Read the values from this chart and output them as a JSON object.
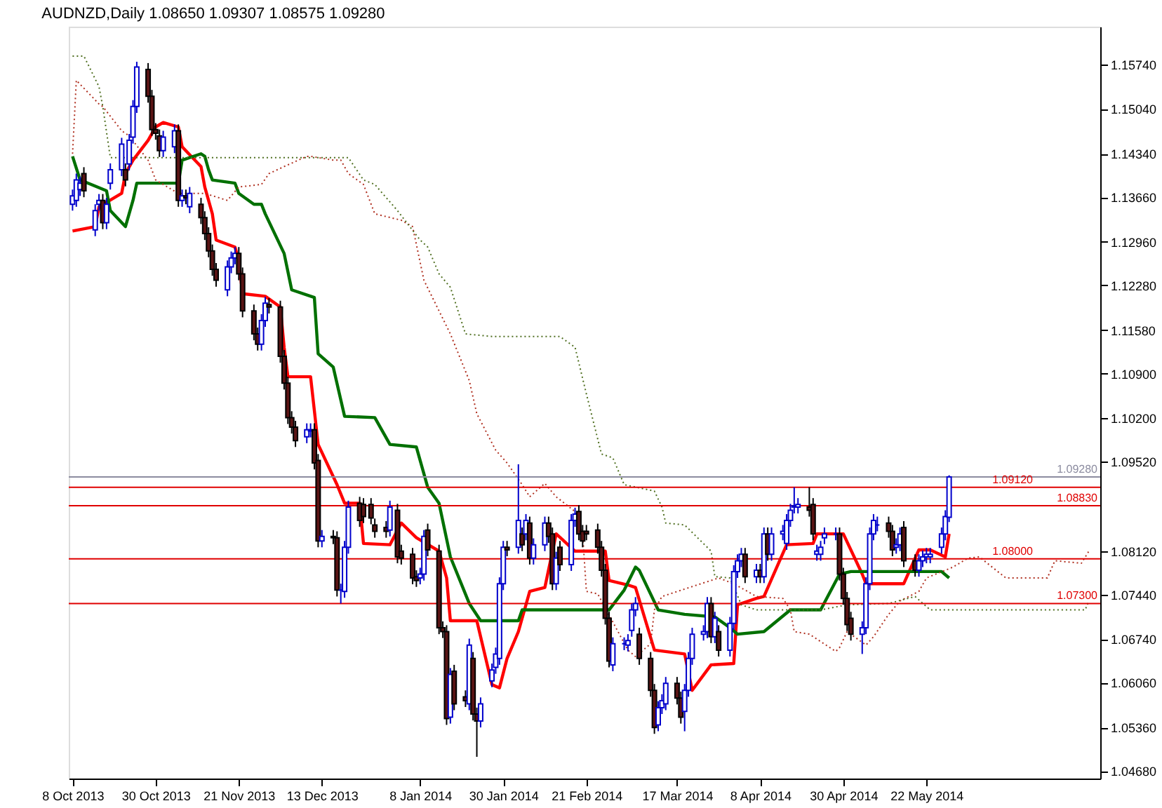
{
  "chart_data": {
    "type": "candlestick",
    "title": "AUDNZD,Daily  1.08650 1.09307 1.08575 1.09280",
    "x": [
      "2013-10-08",
      "2013-10-09",
      "2013-10-10",
      "2013-10-11",
      "2013-10-14",
      "2013-10-15",
      "2013-10-16",
      "2013-10-17",
      "2013-10-18",
      "2013-10-21",
      "2013-10-22",
      "2013-10-23",
      "2013-10-24",
      "2013-10-25",
      "2013-10-28",
      "2013-10-29",
      "2013-10-30",
      "2013-10-31",
      "2013-11-01",
      "2013-11-04",
      "2013-11-05",
      "2013-11-06",
      "2013-11-07",
      "2013-11-08",
      "2013-11-11",
      "2013-11-12",
      "2013-11-13",
      "2013-11-14",
      "2013-11-15",
      "2013-11-18",
      "2013-11-19",
      "2013-11-20",
      "2013-11-21",
      "2013-11-22",
      "2013-11-25",
      "2013-11-26",
      "2013-11-27",
      "2013-11-28",
      "2013-11-29",
      "2013-12-02",
      "2013-12-03",
      "2013-12-04",
      "2013-12-05",
      "2013-12-06",
      "2013-12-09",
      "2013-12-10",
      "2013-12-11",
      "2013-12-12",
      "2013-12-13",
      "2013-12-16",
      "2013-12-17",
      "2013-12-18",
      "2013-12-19",
      "2013-12-20",
      "2013-12-23",
      "2013-12-24",
      "2013-12-26",
      "2013-12-27",
      "2013-12-30",
      "2013-12-31",
      "2014-01-02",
      "2014-01-03",
      "2014-01-06",
      "2014-01-07",
      "2014-01-08",
      "2014-01-09",
      "2014-01-10",
      "2014-01-13",
      "2014-01-14",
      "2014-01-15",
      "2014-01-16",
      "2014-01-17",
      "2014-01-20",
      "2014-01-21",
      "2014-01-22",
      "2014-01-23",
      "2014-01-24",
      "2014-01-27",
      "2014-01-28",
      "2014-01-29",
      "2014-01-30",
      "2014-01-31",
      "2014-02-03",
      "2014-02-04",
      "2014-02-05",
      "2014-02-06",
      "2014-02-07",
      "2014-02-10",
      "2014-02-11",
      "2014-02-12",
      "2014-02-13",
      "2014-02-14",
      "2014-02-17",
      "2014-02-18",
      "2014-02-19",
      "2014-02-20",
      "2014-02-21",
      "2014-02-24",
      "2014-02-25",
      "2014-02-26",
      "2014-02-27",
      "2014-02-28",
      "2014-03-03",
      "2014-03-04",
      "2014-03-05",
      "2014-03-06",
      "2014-03-07",
      "2014-03-10",
      "2014-03-11",
      "2014-03-12",
      "2014-03-13",
      "2014-03-14",
      "2014-03-17",
      "2014-03-18",
      "2014-03-19",
      "2014-03-20",
      "2014-03-21",
      "2014-03-24",
      "2014-03-25",
      "2014-03-26",
      "2014-03-27",
      "2014-03-28",
      "2014-03-31",
      "2014-04-01",
      "2014-04-02",
      "2014-04-03",
      "2014-04-04",
      "2014-04-07",
      "2014-04-08",
      "2014-04-09",
      "2014-04-10",
      "2014-04-11",
      "2014-04-14",
      "2014-04-15",
      "2014-04-16",
      "2014-04-17",
      "2014-04-18",
      "2014-04-21",
      "2014-04-22",
      "2014-04-23",
      "2014-04-24",
      "2014-04-25",
      "2014-04-28",
      "2014-04-29",
      "2014-04-30",
      "2014-05-01",
      "2014-05-02",
      "2014-05-05",
      "2014-05-06",
      "2014-05-07",
      "2014-05-08",
      "2014-05-09",
      "2014-05-12",
      "2014-05-13",
      "2014-05-14",
      "2014-05-15",
      "2014-05-16",
      "2014-05-19",
      "2014-05-20",
      "2014-05-21",
      "2014-05-22",
      "2014-05-23",
      "2014-05-26",
      "2014-05-27",
      "2014-05-28"
    ],
    "ohlc": [
      [
        1.1355,
        1.1378,
        1.1345,
        1.1368
      ],
      [
        1.1361,
        1.1403,
        1.1351,
        1.1393
      ],
      [
        1.1378,
        1.1398,
        1.1368,
        1.1388
      ],
      [
        1.1403,
        1.1413,
        1.1366,
        1.1376
      ],
      [
        1.1315,
        1.1355,
        1.1305,
        1.1345
      ],
      [
        1.1355,
        1.1371,
        1.1345,
        1.1361
      ],
      [
        1.1361,
        1.1371,
        1.1316,
        1.1326
      ],
      [
        1.1326,
        1.1365,
        1.1316,
        1.1355
      ],
      [
        1.1388,
        1.1419,
        1.1378,
        1.1409
      ],
      [
        1.1409,
        1.1459,
        1.1399,
        1.1449
      ],
      [
        1.1409,
        1.1419,
        1.1383,
        1.1393
      ],
      [
        1.1418,
        1.1465,
        1.1408,
        1.1455
      ],
      [
        1.146,
        1.1518,
        1.145,
        1.1508
      ],
      [
        1.1508,
        1.1578,
        1.1498,
        1.157
      ],
      [
        1.1566,
        1.1576,
        1.1514,
        1.1524
      ],
      [
        1.1524,
        1.1534,
        1.1462,
        1.1472
      ],
      [
        1.1472,
        1.1482,
        1.1456,
        1.1466
      ],
      [
        1.1462,
        1.1472,
        1.1429,
        1.1439
      ],
      [
        1.1439,
        1.147,
        1.1429,
        1.146
      ],
      [
        1.1445,
        1.148,
        1.1435,
        1.147
      ],
      [
        1.147,
        1.148,
        1.1351,
        1.1361
      ],
      [
        1.1361,
        1.1378,
        1.1351,
        1.1368
      ],
      [
        1.1368,
        1.1378,
        1.1355,
        1.1365
      ],
      [
        1.1351,
        1.1382,
        1.1341,
        1.1372
      ],
      [
        1.1355,
        1.1365,
        1.1324,
        1.1334
      ],
      [
        1.1334,
        1.1344,
        1.1299,
        1.1309
      ],
      [
        1.1309,
        1.1319,
        1.1272,
        1.1282
      ],
      [
        1.1282,
        1.1292,
        1.1243,
        1.1253
      ],
      [
        1.1253,
        1.1263,
        1.1226,
        1.1236
      ],
      [
        1.1221,
        1.1267,
        1.1211,
        1.1257
      ],
      [
        1.1257,
        1.1281,
        1.1247,
        1.1271
      ],
      [
        1.1271,
        1.1288,
        1.1261,
        1.1278
      ],
      [
        1.1278,
        1.1288,
        1.1236,
        1.1246
      ],
      [
        1.1246,
        1.1256,
        1.1178,
        1.1188
      ],
      [
        1.1188,
        1.1198,
        1.1142,
        1.1152
      ],
      [
        1.1152,
        1.1162,
        1.1126,
        1.1136
      ],
      [
        1.1136,
        1.1183,
        1.1126,
        1.1173
      ],
      [
        1.1173,
        1.121,
        1.1163,
        1.12
      ],
      [
        1.1198,
        1.1208,
        1.1184,
        1.1194
      ],
      [
        1.1194,
        1.1204,
        1.1107,
        1.1117
      ],
      [
        1.1117,
        1.1127,
        1.1065,
        1.1075
      ],
      [
        1.1075,
        1.1085,
        1.1011,
        1.1021
      ],
      [
        1.1021,
        1.1031,
        1.0996,
        1.1006
      ],
      [
        1.1006,
        1.1016,
        1.0975,
        1.0985
      ],
      [
        1.0991,
        1.1012,
        1.0981,
        1.1002
      ],
      [
        1.1,
        1.1012,
        1.099,
        1.1002
      ],
      [
        1.1002,
        1.1012,
        1.094,
        1.095
      ],
      [
        1.0954,
        1.0964,
        1.0818,
        1.0828
      ],
      [
        1.0828,
        1.0845,
        1.0818,
        1.0835
      ],
      [
        1.0835,
        1.0845,
        1.0823,
        1.0833
      ],
      [
        1.0833,
        1.0843,
        1.0741,
        1.0751
      ],
      [
        1.0751,
        1.0761,
        1.073,
        1.0751
      ],
      [
        1.0749,
        1.0828,
        1.0739,
        1.0818
      ],
      [
        1.0818,
        1.0891,
        1.0808,
        1.0881
      ],
      [
        1.0887,
        1.0897,
        1.085,
        1.086
      ],
      [
        1.0885,
        1.0895,
        1.0856,
        1.0866
      ],
      [
        1.0885,
        1.0895,
        1.0854,
        1.0864
      ],
      [
        1.0853,
        1.0863,
        1.0833,
        1.0843
      ],
      [
        1.0849,
        1.0859,
        1.0833,
        1.0843
      ],
      [
        1.0845,
        1.0891,
        1.0835,
        1.0881
      ],
      [
        1.0876,
        1.0886,
        1.0793,
        1.0803
      ],
      [
        1.0812,
        1.0822,
        1.0791,
        1.0801
      ],
      [
        1.0807,
        1.0817,
        1.076,
        1.077
      ],
      [
        1.0772,
        1.0782,
        1.0756,
        1.0766
      ],
      [
        1.077,
        1.0786,
        1.076,
        1.0776
      ],
      [
        1.0776,
        1.0845,
        1.0766,
        1.0835
      ],
      [
        1.0845,
        1.0855,
        1.0804,
        1.0814
      ],
      [
        1.0812,
        1.0822,
        1.0682,
        1.0692
      ],
      [
        1.0692,
        1.0702,
        1.0676,
        1.0686
      ],
      [
        1.0686,
        1.0696,
        1.054,
        1.055
      ],
      [
        1.0552,
        1.0629,
        1.0542,
        1.0619
      ],
      [
        1.0624,
        1.0634,
        1.0563,
        1.0573
      ],
      [
        1.0584,
        1.0594,
        1.0568,
        1.0578
      ],
      [
        1.0573,
        1.0675,
        1.0563,
        1.0665
      ],
      [
        1.0644,
        1.0654,
        1.0547,
        1.0557
      ],
      [
        1.0557,
        1.0567,
        1.049,
        1.0546
      ],
      [
        1.0546,
        1.0583,
        1.0536,
        1.0573
      ],
      [
        1.0609,
        1.0636,
        1.0599,
        1.0626
      ],
      [
        1.063,
        1.0661,
        1.062,
        1.0651
      ],
      [
        1.0644,
        1.0771,
        1.0634,
        1.0761
      ],
      [
        1.0761,
        1.0828,
        1.0751,
        1.0818
      ],
      [
        1.0818,
        1.0828,
        1.0804,
        1.0814
      ],
      [
        1.0818,
        1.0948,
        1.0808,
        1.086
      ],
      [
        1.0839,
        1.0849,
        1.0812,
        1.0822
      ],
      [
        1.0839,
        1.087,
        1.0829,
        1.086
      ],
      [
        1.0856,
        1.0866,
        1.0791,
        1.0801
      ],
      [
        1.0801,
        1.0832,
        1.0791,
        1.0822
      ],
      [
        1.0822,
        1.0866,
        1.0812,
        1.0856
      ],
      [
        1.0856,
        1.0866,
        1.0825,
        1.0835
      ],
      [
        1.0839,
        1.0849,
        1.0751,
        1.0761
      ],
      [
        1.0761,
        1.0811,
        1.0751,
        1.0801
      ],
      [
        1.0818,
        1.0828,
        1.0781,
        1.0791
      ],
      [
        1.0791,
        1.087,
        1.0781,
        1.086
      ],
      [
        1.086,
        1.088,
        1.085,
        1.087
      ],
      [
        1.0874,
        1.0884,
        1.0829,
        1.0839
      ],
      [
        1.0843,
        1.0853,
        1.0818,
        1.0828
      ],
      [
        1.0843,
        1.0853,
        1.0829,
        1.0839
      ],
      [
        1.0845,
        1.0855,
        1.0808,
        1.0818
      ],
      [
        1.0818,
        1.0828,
        1.0772,
        1.0782
      ],
      [
        1.0782,
        1.0792,
        1.0697,
        1.0707
      ],
      [
        1.0707,
        1.0717,
        1.063,
        1.064
      ],
      [
        1.0634,
        1.0677,
        1.0624,
        1.0667
      ],
      [
        1.0667,
        1.0677,
        1.0657,
        1.0667
      ],
      [
        1.0665,
        1.0682,
        1.0655,
        1.0672
      ],
      [
        1.0688,
        1.073,
        1.0678,
        1.072
      ],
      [
        1.072,
        1.074,
        1.071,
        1.073
      ],
      [
        1.0682,
        1.0692,
        1.0634,
        1.0644
      ],
      [
        1.0644,
        1.0654,
        1.0584,
        1.0594
      ],
      [
        1.0594,
        1.0604,
        1.0526,
        1.0536
      ],
      [
        1.054,
        1.0577,
        1.053,
        1.0567
      ],
      [
        1.0567,
        1.0588,
        1.0557,
        1.0578
      ],
      [
        1.0573,
        1.0615,
        1.0563,
        1.0605
      ],
      [
        1.0605,
        1.0615,
        1.0572,
        1.0582
      ],
      [
        1.0582,
        1.0592,
        1.0542,
        1.0552
      ],
      [
        1.0561,
        1.0604,
        1.053,
        1.0594
      ],
      [
        1.0594,
        1.0654,
        1.0584,
        1.0644
      ],
      [
        1.0644,
        1.0692,
        1.0634,
        1.0682
      ],
      [
        1.0682,
        1.0696,
        1.0672,
        1.0686
      ],
      [
        1.0686,
        1.074,
        1.0676,
        1.073
      ],
      [
        1.073,
        1.074,
        1.0668,
        1.0678
      ],
      [
        1.0678,
        1.0717,
        1.0668,
        1.0707
      ],
      [
        1.0686,
        1.0696,
        1.0647,
        1.0657
      ],
      [
        1.0657,
        1.0709,
        1.0647,
        1.0699
      ],
      [
        1.0699,
        1.079,
        1.0689,
        1.078
      ],
      [
        1.078,
        1.0807,
        1.077,
        1.0797
      ],
      [
        1.0797,
        1.0817,
        1.0787,
        1.0807
      ],
      [
        1.0807,
        1.0817,
        1.0762,
        1.0772
      ],
      [
        1.0772,
        1.0792,
        1.0762,
        1.0782
      ],
      [
        1.0782,
        1.0792,
        1.0762,
        1.0772
      ],
      [
        1.0772,
        1.0849,
        1.0762,
        1.0839
      ],
      [
        1.0839,
        1.0849,
        1.0797,
        1.0807
      ],
      [
        1.0807,
        1.0849,
        1.0797,
        1.0839
      ],
      [
        1.0839,
        1.0853,
        1.0829,
        1.0843
      ],
      [
        1.0824,
        1.087,
        1.0814,
        1.086
      ],
      [
        1.086,
        1.0886,
        1.085,
        1.0876
      ],
      [
        1.0881,
        1.0912,
        1.0871,
        1.0883
      ],
      [
        1.0881,
        1.0895,
        1.0871,
        1.0885
      ],
      [
        1.0881,
        1.0912,
        1.0866,
        1.0876
      ],
      [
        1.0885,
        1.0895,
        1.0829,
        1.0839
      ],
      [
        1.0807,
        1.0822,
        1.0797,
        1.0812
      ],
      [
        1.0807,
        1.0828,
        1.0797,
        1.0818
      ],
      [
        1.0833,
        1.0849,
        1.0823,
        1.0839
      ],
      [
        1.0839,
        1.0849,
        1.0829,
        1.0839
      ],
      [
        1.0839,
        1.0849,
        1.0766,
        1.0776
      ],
      [
        1.0776,
        1.0786,
        1.0728,
        1.0738
      ],
      [
        1.0738,
        1.0748,
        1.0687,
        1.0697
      ],
      [
        1.0707,
        1.0717,
        1.0672,
        1.0682
      ],
      [
        1.0682,
        1.0702,
        1.0651,
        1.0692
      ],
      [
        1.0692,
        1.0771,
        1.0682,
        1.0761
      ],
      [
        1.0761,
        1.0849,
        1.0751,
        1.0839
      ],
      [
        1.0839,
        1.087,
        1.0829,
        1.086
      ],
      [
        1.0853,
        1.0866,
        1.0843,
        1.0853
      ],
      [
        1.0856,
        1.0866,
        1.0833,
        1.0843
      ],
      [
        1.0843,
        1.0853,
        1.0804,
        1.0814
      ],
      [
        1.0818,
        1.0832,
        1.0808,
        1.0822
      ],
      [
        1.0822,
        1.0849,
        1.0812,
        1.0839
      ],
      [
        1.0849,
        1.0859,
        1.0787,
        1.0797
      ],
      [
        1.0797,
        1.0807,
        1.0772,
        1.0782
      ],
      [
        1.0782,
        1.0807,
        1.0772,
        1.0797
      ],
      [
        1.0797,
        1.0813,
        1.0787,
        1.0803
      ],
      [
        1.0803,
        1.0817,
        1.0793,
        1.0807
      ],
      [
        1.0803,
        1.0817,
        1.0793,
        1.0807
      ],
      [
        1.0818,
        1.0849,
        1.0808,
        1.0839
      ],
      [
        1.0839,
        1.0876,
        1.0829,
        1.0866
      ],
      [
        1.0865,
        1.09307,
        1.08575,
        1.0928
      ]
    ],
    "series": [
      {
        "type": "line",
        "color": "#ff0000",
        "line_style": "solid",
        "x": [
          "2013-10-08",
          "2013-10-14",
          "2013-10-15",
          "2013-10-21",
          "2013-10-22",
          "2013-10-24",
          "2013-10-28",
          "2013-10-30",
          "2013-11-01",
          "2013-11-05",
          "2013-11-06",
          "2013-11-11",
          "2013-11-12",
          "2013-11-14",
          "2013-11-15",
          "2013-11-20",
          "2013-11-21",
          "2013-11-22",
          "2013-11-28",
          "2013-12-02",
          "2013-12-03",
          "2013-12-04",
          "2013-12-10",
          "2013-12-12",
          "2013-12-17",
          "2013-12-19",
          "2013-12-23",
          "2013-12-24",
          "2013-12-31",
          "2014-01-03",
          "2014-01-07",
          "2014-01-13",
          "2014-01-15",
          "2014-01-16",
          "2014-01-23",
          "2014-01-27",
          "2014-01-29",
          "2014-01-31",
          "2014-02-03",
          "2014-02-06",
          "2014-02-10",
          "2014-02-13",
          "2014-02-18",
          "2014-02-26",
          "2014-02-27",
          "2014-03-04",
          "2014-03-06",
          "2014-03-11",
          "2014-03-19",
          "2014-03-21",
          "2014-03-26",
          "2014-04-01",
          "2014-04-02",
          "2014-04-07",
          "2014-04-09",
          "2014-04-15",
          "2014-04-22",
          "2014-04-23",
          "2014-04-30",
          "2014-05-05",
          "2014-05-06",
          "2014-05-16",
          "2014-05-20",
          "2014-05-23",
          "2014-05-27",
          "2014-05-28"
        ],
        "values": [
          1.1313,
          1.132,
          1.1351,
          1.1372,
          1.1403,
          1.1424,
          1.1455,
          1.1476,
          1.1483,
          1.1476,
          1.1445,
          1.1414,
          1.1382,
          1.134,
          1.1299,
          1.1288,
          1.1267,
          1.1215,
          1.1211,
          1.1194,
          1.1131,
          1.1085,
          1.1085,
          1.0979,
          1.0916,
          1.0887,
          1.0887,
          1.0824,
          1.0822,
          1.0856,
          1.0833,
          1.0812,
          1.077,
          1.0703,
          1.0703,
          1.0603,
          1.0598,
          1.0644,
          1.0686,
          1.0749,
          1.0755,
          1.0839,
          1.0812,
          1.0812,
          1.0766,
          1.0759,
          1.0755,
          1.0657,
          1.0651,
          1.0594,
          1.0634,
          1.0636,
          1.0728,
          1.0738,
          1.0741,
          1.0822,
          1.0824,
          1.0839,
          1.0839,
          1.0776,
          1.0761,
          1.0761,
          1.0814,
          1.0814,
          1.0803,
          1.0839
        ]
      },
      {
        "type": "line",
        "color": "#007000",
        "line_style": "solid",
        "x": [
          "2013-10-08",
          "2013-10-10",
          "2013-10-17",
          "2013-10-18",
          "2013-10-22",
          "2013-10-24",
          "2013-10-25",
          "2013-11-05",
          "2013-11-06",
          "2013-11-11",
          "2013-11-12",
          "2013-11-13",
          "2013-11-14",
          "2013-11-20",
          "2013-11-21",
          "2013-11-25",
          "2013-11-27",
          "2013-11-28",
          "2013-12-03",
          "2013-12-05",
          "2013-12-11",
          "2013-12-12",
          "2013-12-16",
          "2013-12-19",
          "2013-12-27",
          "2013-12-31",
          "2014-01-07",
          "2014-01-10",
          "2014-01-13",
          "2014-01-16",
          "2014-01-21",
          "2014-01-24",
          "2014-02-03",
          "2014-02-04",
          "2014-02-27",
          "2014-03-03",
          "2014-03-06",
          "2014-03-07",
          "2014-03-12",
          "2014-03-19",
          "2014-03-27",
          "2014-03-31",
          "2014-04-02",
          "2014-04-09",
          "2014-04-16",
          "2014-04-24",
          "2014-04-29",
          "2014-05-02",
          "2014-05-26",
          "2014-05-28"
        ],
        "values": [
          1.143,
          1.1393,
          1.1376,
          1.1345,
          1.132,
          1.1361,
          1.1388,
          1.1388,
          1.1424,
          1.1434,
          1.143,
          1.1409,
          1.1393,
          1.1388,
          1.1372,
          1.1355,
          1.1355,
          1.134,
          1.1278,
          1.1221,
          1.1209,
          1.1121,
          1.11,
          1.1023,
          1.1021,
          1.0979,
          1.0975,
          1.0912,
          1.0887,
          1.0803,
          1.073,
          1.0703,
          1.0703,
          1.072,
          1.072,
          1.0751,
          1.0787,
          1.0782,
          1.072,
          1.0713,
          1.0709,
          1.0692,
          1.0682,
          1.0686,
          1.072,
          1.072,
          1.0776,
          1.078,
          1.078,
          1.077
        ]
      },
      {
        "type": "line",
        "color": "#b03020",
        "line_style": "dotted",
        "x": [
          "2013-10-08",
          "2013-10-09",
          "2013-10-15",
          "2013-10-16",
          "2013-10-21",
          "2013-10-23",
          "2013-10-28",
          "2013-10-30",
          "2013-11-05",
          "2013-11-12",
          "2013-11-18",
          "2013-11-21",
          "2013-11-27",
          "2013-11-29",
          "2013-12-03",
          "2013-12-09",
          "2013-12-10",
          "2013-12-16",
          "2013-12-18",
          "2013-12-20",
          "2013-12-24",
          "2013-12-27",
          "2014-01-03",
          "2014-01-06",
          "2014-01-09",
          "2014-01-16",
          "2014-01-21",
          "2014-01-23",
          "2014-01-28",
          "2014-01-31",
          "2014-02-04",
          "2014-02-06",
          "2014-02-10",
          "2014-02-13",
          "2014-02-18",
          "2014-02-20",
          "2014-02-21",
          "2014-02-24",
          "2014-03-04",
          "2014-03-06",
          "2014-03-10",
          "2014-03-11",
          "2014-03-13",
          "2014-03-28",
          "2014-04-01",
          "2014-04-07",
          "2014-04-14",
          "2014-04-16",
          "2014-04-17",
          "2014-04-21",
          "2014-04-28",
          "2014-04-29",
          "2014-05-01",
          "2014-05-06",
          "2014-05-08",
          "2014-05-12",
          "2014-05-15",
          "2014-05-20",
          "2014-05-22",
          "2014-05-27",
          "2014-05-29",
          "2014-06-02",
          "2014-06-05",
          "2014-06-12",
          "2014-06-23",
          "2014-06-25",
          "2014-07-02",
          "2014-07-04"
        ],
        "values": [
          1.1434,
          1.1549,
          1.1512,
          1.1508,
          1.147,
          1.1462,
          1.1424,
          1.1393,
          1.1372,
          1.1372,
          1.1361,
          1.1382,
          1.1386,
          1.1403,
          1.1414,
          1.143,
          1.143,
          1.1424,
          1.1424,
          1.1403,
          1.1386,
          1.134,
          1.133,
          1.132,
          1.1236,
          1.1152,
          1.1079,
          1.1027,
          1.097,
          1.095,
          1.0916,
          1.0897,
          1.0918,
          1.0897,
          1.0874,
          1.0839,
          1.0749,
          1.0745,
          1.0657,
          1.0647,
          1.0667,
          1.072,
          1.0741,
          1.077,
          1.0761,
          1.0741,
          1.0738,
          1.072,
          1.0686,
          1.0682,
          1.0655,
          1.0661,
          1.0686,
          1.0665,
          1.0678,
          1.0713,
          1.0734,
          1.0749,
          1.077,
          1.0782,
          1.0787,
          1.0801,
          1.0803,
          1.077,
          1.077,
          1.0797,
          1.0793,
          1.0812
        ]
      },
      {
        "type": "line",
        "color": "#4f6f20",
        "line_style": "dotted",
        "x": [
          "2013-10-08",
          "2013-10-11",
          "2013-10-15",
          "2013-10-16",
          "2013-10-18",
          "2013-12-20",
          "2013-12-24",
          "2013-12-27",
          "2014-01-02",
          "2014-01-08",
          "2014-01-10",
          "2014-01-13",
          "2014-01-16",
          "2014-01-20",
          "2014-01-27",
          "2014-02-14",
          "2014-02-18",
          "2014-02-21",
          "2014-02-25",
          "2014-02-28",
          "2014-03-03",
          "2014-03-11",
          "2014-03-13",
          "2014-03-14",
          "2014-03-19",
          "2014-03-26",
          "2014-03-27",
          "2014-03-31",
          "2014-04-03",
          "2014-04-07",
          "2014-04-24",
          "2014-05-01",
          "2014-05-12",
          "2014-05-19",
          "2014-05-23",
          "2014-07-03",
          "2014-07-04"
        ],
        "values": [
          1.1587,
          1.1587,
          1.1539,
          1.1508,
          1.1428,
          1.1428,
          1.1393,
          1.1386,
          1.1345,
          1.1299,
          1.1288,
          1.1246,
          1.1225,
          1.1152,
          1.1148,
          1.1148,
          1.1131,
          1.1058,
          1.0964,
          1.0958,
          1.0916,
          1.0906,
          1.0881,
          1.0856,
          1.0853,
          1.0812,
          1.0772,
          1.077,
          1.0728,
          1.072,
          1.072,
          1.0728,
          1.073,
          1.0741,
          1.072,
          1.072,
          1.0734
        ]
      }
    ],
    "xlim": [
      "2013-10-07",
      "2014-07-07"
    ],
    "xticks": [
      {
        "value": "2013-10-08",
        "label": "8 Oct 2013"
      },
      {
        "value": "2013-10-30",
        "label": "30 Oct 2013"
      },
      {
        "value": "2013-11-21",
        "label": "21 Nov 2013"
      },
      {
        "value": "2013-12-13",
        "label": "13 Dec 2013"
      },
      {
        "value": "2014-01-08",
        "label": "8 Jan 2014"
      },
      {
        "value": "2014-01-30",
        "label": "30 Jan 2014"
      },
      {
        "value": "2014-02-21",
        "label": "21 Feb 2014"
      },
      {
        "value": "2014-03-17",
        "label": "17 Mar 2014"
      },
      {
        "value": "2014-04-08",
        "label": "8 Apr 2014"
      },
      {
        "value": "2014-04-30",
        "label": "30 Apr 2014"
      },
      {
        "value": "2014-05-22",
        "label": "22 May 2014"
      }
    ],
    "ylim": [
      1.0456,
      1.1633
    ],
    "yticks": [
      {
        "value": 1.1574,
        "label": "1.15740"
      },
      {
        "value": 1.1504,
        "label": "1.15040"
      },
      {
        "value": 1.1434,
        "label": "1.14340"
      },
      {
        "value": 1.1366,
        "label": "1.13660"
      },
      {
        "value": 1.1296,
        "label": "1.12960"
      },
      {
        "value": 1.1228,
        "label": "1.12280"
      },
      {
        "value": 1.1158,
        "label": "1.11580"
      },
      {
        "value": 1.109,
        "label": "1.10900"
      },
      {
        "value": 1.102,
        "label": "1.10200"
      },
      {
        "value": 1.0952,
        "label": "1.09520"
      },
      {
        "value": 1.0812,
        "label": "1.08120"
      },
      {
        "value": 1.0744,
        "label": "1.07440"
      },
      {
        "value": 1.0674,
        "label": "1.06740"
      },
      {
        "value": 1.0606,
        "label": "1.06060"
      },
      {
        "value": 1.0536,
        "label": "1.05360"
      },
      {
        "value": 1.0468,
        "label": "1.04680"
      }
    ],
    "ref_lines": [
      {
        "axis": "y",
        "value": 1.0928,
        "label": "1.09280",
        "color": "#8c8ca0"
      },
      {
        "axis": "y",
        "value": 1.0912,
        "label": "1.09120",
        "color": "#e00000"
      },
      {
        "axis": "y",
        "value": 1.0883,
        "label": "1.08830",
        "color": "#e00000"
      },
      {
        "axis": "y",
        "value": 1.08,
        "label": "1.08000",
        "color": "#e00000"
      },
      {
        "axis": "y",
        "value": 1.073,
        "label": "1.07300",
        "color": "#e00000"
      }
    ]
  }
}
